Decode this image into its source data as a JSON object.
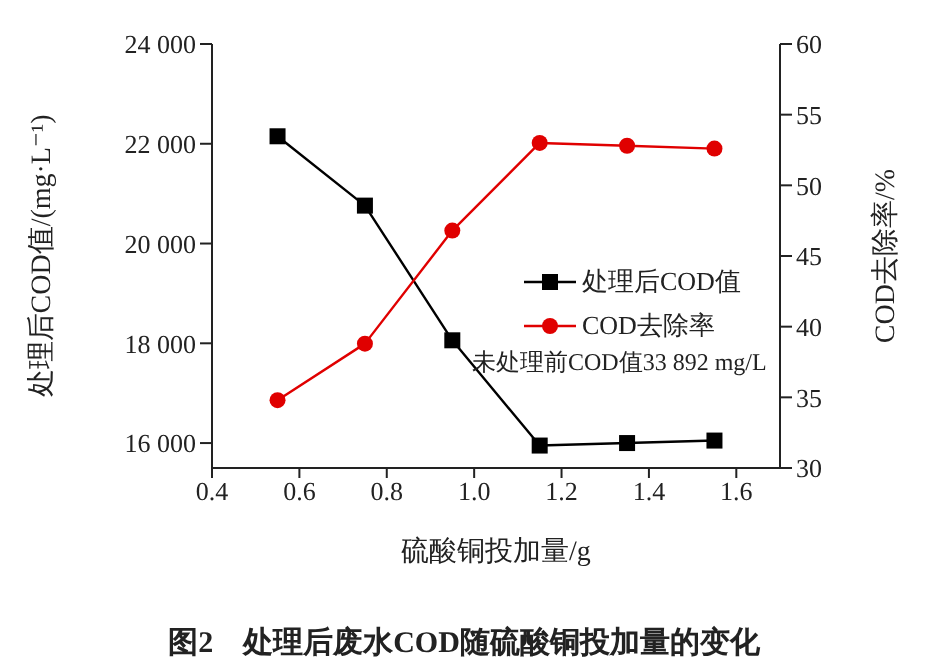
{
  "chart_data": {
    "type": "line",
    "title": "图2　处理后废水COD随硫酸铜投加量的变化",
    "xlabel": "硫酸铜投加量/g",
    "ylabel": "处理后COD值/(mg·L⁻¹)",
    "y2label": "COD去除率/%",
    "x": [
      0.55,
      0.75,
      0.95,
      1.15,
      1.35,
      1.55
    ],
    "series": [
      {
        "name": "处理后COD值",
        "color": "#000000",
        "marker": "square",
        "values": [
          22150,
          20760,
          18060,
          15950,
          16000,
          16050
        ]
      },
      {
        "name": "COD去除率",
        "color": "#e00000",
        "marker": "circle",
        "axis": "y2",
        "values": [
          34.8,
          38.8,
          46.8,
          53.0,
          52.8,
          52.6
        ]
      }
    ],
    "xlim": [
      0.4,
      1.7
    ],
    "xticks": [
      0.4,
      0.6,
      0.8,
      {
        "value": 1,
        "label": "1.0"
      },
      1.2,
      1.4,
      1.6
    ],
    "ylim": [
      15500,
      24000
    ],
    "yticks": [
      {
        "value": 16000,
        "label": "16 000"
      },
      {
        "value": 18000,
        "label": "18 000"
      },
      {
        "value": 20000,
        "label": "20 000"
      },
      {
        "value": 22000,
        "label": "22 000"
      },
      {
        "value": 24000,
        "label": "24 000"
      }
    ],
    "y2lim": [
      30,
      60
    ],
    "y2ticks": [
      30,
      35,
      40,
      45,
      50,
      55,
      60
    ],
    "annotations": [
      "未处理前COD值33 892 mg/L"
    ],
    "legend": "right",
    "grid": false,
    "line_style": "solid"
  }
}
